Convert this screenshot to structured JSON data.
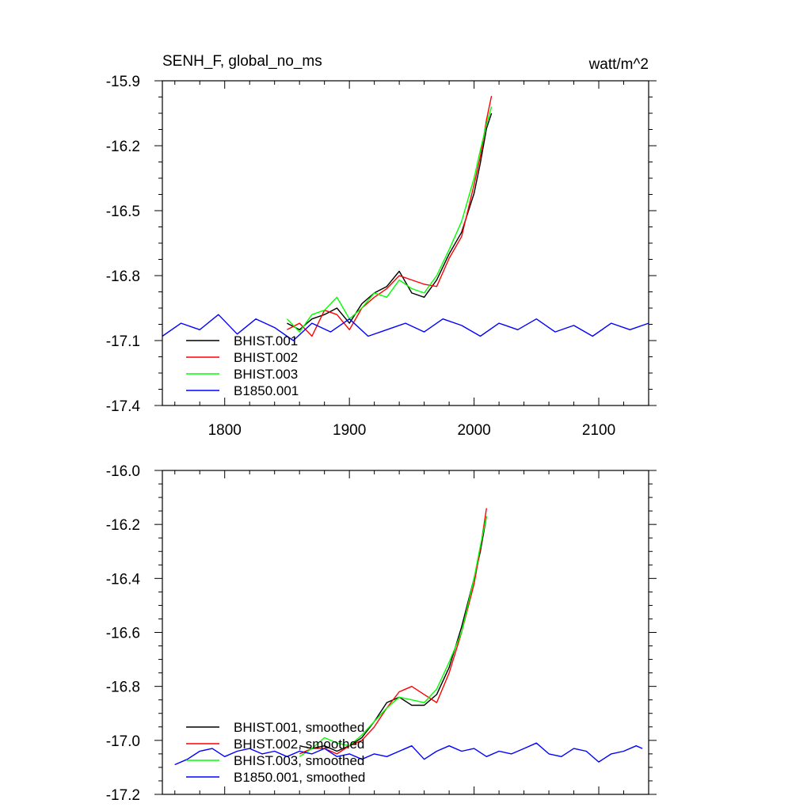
{
  "chart_data": [
    {
      "type": "line",
      "title": "SENH_F, global_no_ms",
      "units": "watt/m^2",
      "xlim": [
        1750,
        2140
      ],
      "ylim": [
        -17.4,
        -15.9
      ],
      "x_ticks": [
        1800,
        1900,
        2000,
        2100
      ],
      "x_tick_labels": [
        "1800",
        "1900",
        "2000",
        "2100"
      ],
      "y_ticks": [
        -15.9,
        -16.2,
        -16.5,
        -16.8,
        -17.1,
        -17.4
      ],
      "y_tick_labels": [
        "-15.9",
        "-16.2",
        "-16.5",
        "-16.8",
        "-17.1",
        "-17.4"
      ],
      "legend_position": "bottom-left",
      "series": [
        {
          "name": "BHIST.001",
          "color": "#000000",
          "x": [
            1850,
            1860,
            1870,
            1880,
            1890,
            1900,
            1910,
            1920,
            1930,
            1940,
            1950,
            1960,
            1970,
            1980,
            1990,
            2000,
            2005,
            2010,
            2014
          ],
          "y": [
            -17.02,
            -17.05,
            -17.0,
            -16.98,
            -16.95,
            -17.02,
            -16.93,
            -16.88,
            -16.85,
            -16.78,
            -16.88,
            -16.9,
            -16.82,
            -16.7,
            -16.6,
            -16.42,
            -16.28,
            -16.12,
            -16.05
          ]
        },
        {
          "name": "BHIST.002",
          "color": "#ff0000",
          "x": [
            1850,
            1860,
            1870,
            1880,
            1890,
            1900,
            1910,
            1920,
            1930,
            1940,
            1950,
            1960,
            1970,
            1980,
            1990,
            2000,
            2005,
            2010,
            2014
          ],
          "y": [
            -17.05,
            -17.02,
            -17.08,
            -16.96,
            -16.98,
            -17.05,
            -16.95,
            -16.9,
            -16.86,
            -16.8,
            -16.82,
            -16.84,
            -16.85,
            -16.72,
            -16.62,
            -16.38,
            -16.25,
            -16.08,
            -15.97
          ]
        },
        {
          "name": "BHIST.003",
          "color": "#00ff00",
          "x": [
            1850,
            1860,
            1870,
            1880,
            1890,
            1900,
            1910,
            1920,
            1930,
            1940,
            1950,
            1960,
            1970,
            1980,
            1990,
            2000,
            2005,
            2010,
            2014
          ],
          "y": [
            -17.0,
            -17.06,
            -16.98,
            -16.96,
            -16.9,
            -17.0,
            -16.95,
            -16.88,
            -16.9,
            -16.82,
            -16.86,
            -16.88,
            -16.8,
            -16.68,
            -16.55,
            -16.35,
            -16.22,
            -16.1,
            -16.02
          ]
        },
        {
          "name": "B1850.001",
          "color": "#0000ff",
          "x": [
            1750,
            1765,
            1780,
            1795,
            1810,
            1825,
            1840,
            1855,
            1870,
            1885,
            1900,
            1915,
            1930,
            1945,
            1960,
            1975,
            1990,
            2005,
            2020,
            2035,
            2050,
            2065,
            2080,
            2095,
            2110,
            2125,
            2140
          ],
          "y": [
            -17.08,
            -17.02,
            -17.05,
            -16.98,
            -17.07,
            -17.0,
            -17.04,
            -17.1,
            -17.02,
            -17.06,
            -17.0,
            -17.08,
            -17.05,
            -17.02,
            -17.06,
            -17.0,
            -17.03,
            -17.08,
            -17.02,
            -17.05,
            -17.0,
            -17.06,
            -17.03,
            -17.08,
            -17.02,
            -17.05,
            -17.02
          ]
        }
      ]
    },
    {
      "type": "line",
      "xlim": [
        1750,
        2140
      ],
      "ylim": [
        -17.2,
        -16.0
      ],
      "x_ticks": [
        1800,
        1900,
        2000,
        2100
      ],
      "y_ticks": [
        -16.0,
        -16.2,
        -16.4,
        -16.6,
        -16.8,
        -17.0,
        -17.2
      ],
      "y_tick_labels": [
        "-16.0",
        "-16.2",
        "-16.4",
        "-16.6",
        "-16.8",
        "-17.0",
        "-17.2"
      ],
      "legend_position": "bottom-left",
      "series": [
        {
          "name": "BHIST.001, smoothed",
          "color": "#000000",
          "x": [
            1860,
            1870,
            1880,
            1890,
            1900,
            1910,
            1920,
            1930,
            1940,
            1950,
            1960,
            1970,
            1980,
            1990,
            2000,
            2005,
            2010
          ],
          "y": [
            -17.02,
            -17.03,
            -17.02,
            -17.04,
            -17.02,
            -16.99,
            -16.93,
            -16.86,
            -16.84,
            -16.87,
            -16.87,
            -16.83,
            -16.73,
            -16.58,
            -16.4,
            -16.3,
            -16.17
          ]
        },
        {
          "name": "BHIST.002, smoothed",
          "color": "#ff0000",
          "x": [
            1860,
            1870,
            1880,
            1890,
            1900,
            1910,
            1920,
            1930,
            1940,
            1950,
            1960,
            1970,
            1980,
            1990,
            2000,
            2005,
            2010
          ],
          "y": [
            -17.05,
            -17.03,
            -17.03,
            -17.05,
            -17.02,
            -17.0,
            -16.95,
            -16.88,
            -16.82,
            -16.8,
            -16.83,
            -16.86,
            -16.75,
            -16.6,
            -16.42,
            -16.29,
            -16.14
          ]
        },
        {
          "name": "BHIST.003, smoothed",
          "color": "#00ff00",
          "x": [
            1860,
            1870,
            1880,
            1890,
            1900,
            1910,
            1920,
            1930,
            1940,
            1950,
            1960,
            1970,
            1980,
            1990,
            2000,
            2005,
            2010
          ],
          "y": [
            -17.06,
            -17.03,
            -16.99,
            -17.01,
            -17.02,
            -16.98,
            -16.93,
            -16.88,
            -16.84,
            -16.85,
            -16.86,
            -16.81,
            -16.71,
            -16.6,
            -16.4,
            -16.28,
            -16.17
          ]
        },
        {
          "name": "B1850.001, smoothed",
          "color": "#0000ff",
          "x": [
            1760,
            1770,
            1780,
            1790,
            1800,
            1810,
            1820,
            1830,
            1840,
            1850,
            1860,
            1870,
            1880,
            1890,
            1900,
            1910,
            1920,
            1930,
            1940,
            1950,
            1960,
            1970,
            1980,
            1990,
            2000,
            2010,
            2020,
            2030,
            2040,
            2050,
            2060,
            2070,
            2080,
            2090,
            2100,
            2110,
            2120,
            2130,
            2135
          ],
          "y": [
            -17.09,
            -17.07,
            -17.04,
            -17.03,
            -17.06,
            -17.04,
            -17.03,
            -17.05,
            -17.04,
            -17.06,
            -17.04,
            -17.05,
            -17.03,
            -17.06,
            -17.05,
            -17.07,
            -17.05,
            -17.06,
            -17.04,
            -17.02,
            -17.07,
            -17.04,
            -17.02,
            -17.04,
            -17.03,
            -17.06,
            -17.04,
            -17.05,
            -17.03,
            -17.01,
            -17.05,
            -17.06,
            -17.03,
            -17.04,
            -17.08,
            -17.05,
            -17.04,
            -17.02,
            -17.03
          ]
        }
      ]
    }
  ]
}
